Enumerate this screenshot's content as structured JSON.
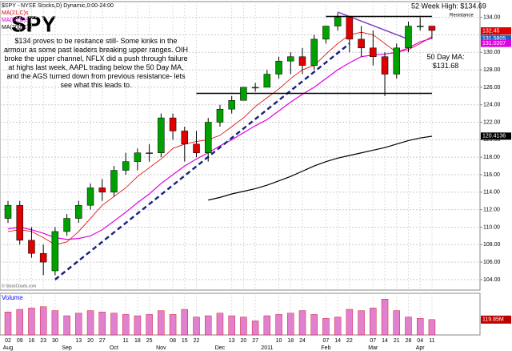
{
  "chart_data": {
    "type": "candlestick",
    "title": "SPY",
    "header": "$SPY - NYSE Stocks,D) Dynamic,0:00-24:00",
    "note": "$134 proves to be resitance still- Some kinks in the armour as some past leaders breaking upper ranges. OIH broke the upper channel, NFLX did a push through failure at highs last week, AAPL trading below the 50 Day MA, and the AGS turned down from previous resistance- lets see what this leads to.",
    "copyright": "© StockCharts.com",
    "categories": [
      "02",
      "09",
      "16",
      "23",
      "30",
      null,
      "13",
      "20",
      "27",
      null,
      "11",
      "18",
      "25",
      null,
      "08",
      "15",
      "22",
      null,
      null,
      "13",
      "20",
      "27",
      null,
      "10",
      "18",
      "24",
      null,
      "07",
      "14",
      "22",
      null,
      "07",
      "14",
      "21",
      "28",
      "04",
      "11"
    ],
    "month_labels": [
      "Aug",
      "Sep",
      "Oct",
      "Nov",
      "Dec",
      "2011",
      "Feb",
      "Mar",
      "Apr"
    ],
    "open": [
      111,
      112.5,
      108.5,
      107,
      105,
      109.5,
      111,
      112.5,
      114.5,
      114,
      116.5,
      117.5,
      118.5,
      118.5,
      122.5,
      121,
      119.5,
      118.5,
      122,
      123.5,
      124.5,
      126,
      126,
      127.5,
      129,
      129.5,
      128.5,
      131.5,
      133,
      134,
      131.5,
      130.5,
      129.5,
      127.5,
      130.5,
      133,
      133
    ],
    "high": [
      113,
      113,
      110,
      108,
      110,
      111.5,
      113,
      115,
      115.5,
      117,
      118.5,
      119,
      119.5,
      123,
      123,
      121.5,
      121,
      122.5,
      124,
      125,
      126,
      126.5,
      128,
      129.5,
      130,
      130.5,
      132,
      133,
      134.5,
      134,
      133,
      132.5,
      130,
      131,
      133.5,
      134,
      133
    ],
    "low": [
      110.5,
      108,
      106.5,
      104.5,
      104.5,
      109,
      110.5,
      112,
      113,
      113.5,
      116,
      116.5,
      117.5,
      118,
      120,
      117.5,
      118,
      117.5,
      121.5,
      123,
      124.5,
      125.5,
      126,
      127,
      127.5,
      127.5,
      128,
      131,
      132.5,
      130,
      129.5,
      128.5,
      125,
      127,
      130,
      132.5,
      131.5
    ],
    "close": [
      112.5,
      108.5,
      107,
      106,
      109.5,
      111,
      112.5,
      114.5,
      114,
      116.5,
      117.5,
      118.5,
      118.5,
      122.5,
      121,
      119.5,
      118.5,
      122,
      123.5,
      124.5,
      126,
      126,
      127.5,
      129,
      129.5,
      128.5,
      131.5,
      133,
      134,
      131.5,
      130.5,
      129.5,
      127.5,
      130.5,
      133,
      133,
      132.5
    ],
    "up_color": "#00a000",
    "down_color": "#e00000",
    "series": [
      {
        "name": "MA(21,C)s",
        "color": "#e00000",
        "values": [
          109.5,
          109.7,
          109.5,
          108.8,
          108,
          108.3,
          109.5,
          111,
          112.5,
          113.5,
          114.5,
          115.8,
          116.8,
          117.8,
          119,
          119.5,
          119.8,
          120,
          120.5,
          121.5,
          122.5,
          123.8,
          124.8,
          125.8,
          127,
          128,
          128.5,
          129.8,
          131,
          132,
          132.3,
          132,
          131,
          130,
          130.3,
          131,
          131.8
        ]
      },
      {
        "name": "MA(50,C)s",
        "color": "#e000e0",
        "values": [
          109.8,
          110,
          109.7,
          109.3,
          108.8,
          108.6,
          108.7,
          109,
          109.7,
          110.7,
          111.7,
          112.8,
          113.8,
          115,
          116,
          117,
          117.8,
          118.5,
          119.3,
          120,
          120.8,
          121.6,
          122.3,
          123.3,
          124.3,
          125.2,
          126,
          127,
          128,
          128.8,
          129.5,
          129.7,
          129.8,
          130,
          130.5,
          131.2,
          131.6
        ]
      },
      {
        "name": "MA(200,C)s",
        "color": "#000000",
        "values": [
          null,
          null,
          null,
          null,
          null,
          null,
          null,
          null,
          null,
          null,
          null,
          null,
          null,
          null,
          null,
          null,
          null,
          113.1,
          113.4,
          113.8,
          114.1,
          114.4,
          114.8,
          115.3,
          115.8,
          116.4,
          117,
          117.5,
          117.9,
          118.2,
          118.5,
          118.8,
          119.1,
          119.5,
          119.9,
          120.2,
          120.4
        ]
      }
    ],
    "badges": [
      {
        "value": 132.45,
        "label": "132.45",
        "color": "#e00000"
      },
      {
        "value": 131.5805,
        "label": "131.5805",
        "color": "#2060c0"
      },
      {
        "value": 131.0207,
        "label": "131.0207",
        "color": "#e000e0"
      },
      {
        "value": 120.4136,
        "label": "120.4136",
        "color": "#000000"
      }
    ],
    "lines": [
      {
        "x": [
          4,
          29
        ],
        "y": [
          104,
          131
        ],
        "color": "#1a237e",
        "style": "dashed"
      },
      {
        "x": [
          28,
          34
        ],
        "y": [
          134.6,
          131.5
        ],
        "color": "#8040c0",
        "style": "solid"
      },
      {
        "x": [
          16,
          36
        ],
        "y": [
          125.3,
          125.3
        ],
        "color": "#000000",
        "style": "solid"
      },
      {
        "x": [
          27,
          36
        ],
        "y": [
          134.1,
          134.1
        ],
        "color": "#000000",
        "style": "solid"
      }
    ],
    "annotations": [
      "52 Week High: $134.69",
      "Resistance",
      "50 Day MA: $131.68"
    ],
    "ylim": [
      102.8,
      135.8
    ],
    "yticks": [
      {
        "value": 104,
        "label": "104.00"
      },
      {
        "value": 106,
        "label": "106.00"
      },
      {
        "value": 108,
        "label": "108.00"
      },
      {
        "value": 110,
        "label": "110.00"
      },
      {
        "value": 112,
        "label": "112.00"
      },
      {
        "value": 114,
        "label": "114.00"
      },
      {
        "value": 116,
        "label": "116.00"
      },
      {
        "value": 118,
        "label": "118.00"
      },
      {
        "value": 120,
        "label": "120.00"
      },
      {
        "value": 122,
        "label": "122.00"
      },
      {
        "value": 124,
        "label": "124.00"
      },
      {
        "value": 126,
        "label": "126.00"
      },
      {
        "value": 128,
        "label": "128.00"
      },
      {
        "value": 130,
        "label": "130.00"
      },
      {
        "value": 132,
        "label": "132.00"
      },
      {
        "value": 134,
        "label": "134.00"
      }
    ],
    "grid": true,
    "volume": {
      "label": "Volume",
      "color": "#e080d0",
      "values": [
        180,
        200,
        210,
        220,
        190,
        150,
        170,
        190,
        180,
        170,
        160,
        150,
        160,
        190,
        160,
        200,
        140,
        150,
        170,
        150,
        140,
        110,
        150,
        160,
        170,
        190,
        160,
        130,
        140,
        200,
        190,
        210,
        280,
        190,
        140,
        130,
        119.85
      ],
      "last_label": "119.85M",
      "ylim": [
        0,
        300
      ]
    }
  }
}
